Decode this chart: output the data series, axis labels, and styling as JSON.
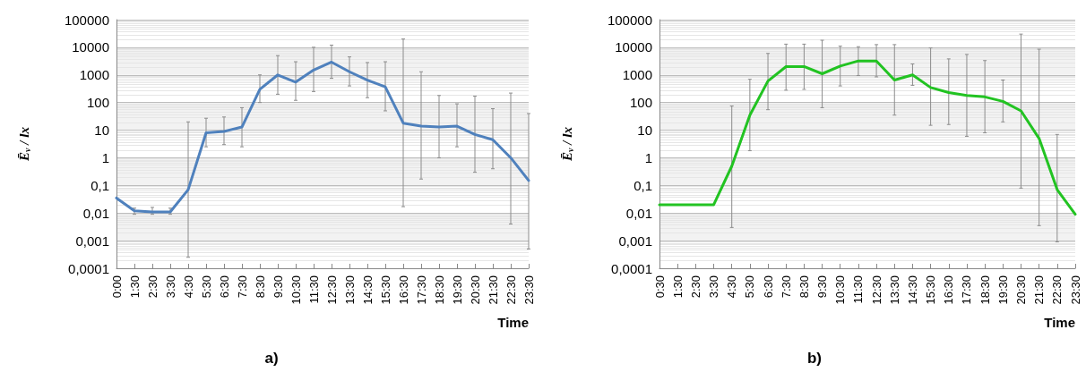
{
  "chart_data": [
    {
      "type": "line",
      "title": "a)",
      "xlabel": "Time",
      "ylabel": "Ē$_{v}$ / lx",
      "categories": [
        "0:00",
        "1:30",
        "2:30",
        "3:30",
        "4:30",
        "5:30",
        "6:30",
        "7:30",
        "8:30",
        "9:30",
        "10:30",
        "11:30",
        "12:30",
        "13:30",
        "14:30",
        "15:30",
        "16:30",
        "17:30",
        "18:30",
        "19:30",
        "20:30",
        "21:30",
        "22:30",
        "23:30"
      ],
      "series": [
        {
          "color": "#4f81bd",
          "values": [
            0.035,
            0.012,
            0.011,
            0.011,
            0.07,
            8,
            9,
            13,
            300,
            1000,
            550,
            1500,
            2900,
            1300,
            650,
            370,
            18,
            14,
            13,
            14,
            7,
            4.5,
            1,
            0.15
          ],
          "errors": [
            null,
            [
              0.009,
              0.015
            ],
            [
              0.009,
              0.016
            ],
            [
              0.009,
              0.015
            ],
            [
              0.00025,
              20
            ],
            [
              2.5,
              27
            ],
            [
              3,
              30
            ],
            [
              2.5,
              65
            ],
            [
              100,
              1000
            ],
            [
              200,
              5000
            ],
            [
              120,
              3000
            ],
            [
              250,
              10000
            ],
            [
              750,
              12000
            ],
            [
              400,
              4500
            ],
            [
              150,
              2800
            ],
            [
              50,
              3000
            ],
            [
              0.017,
              20000
            ],
            [
              0.17,
              1300
            ],
            [
              1,
              180
            ],
            [
              2.5,
              90
            ],
            [
              0.3,
              170
            ],
            [
              0.4,
              60
            ],
            [
              0.004,
              220
            ],
            [
              0.0005,
              40
            ]
          ]
        }
      ],
      "log": "y",
      "ylim": [
        0.0001,
        100000
      ],
      "yticks": [
        {
          "value": 0.0001,
          "label": "0,0001"
        },
        {
          "value": 0.001,
          "label": "0,001"
        },
        {
          "value": 0.01,
          "label": "0,01"
        },
        {
          "value": 0.1,
          "label": "0,1"
        },
        1,
        10,
        100,
        1000,
        10000,
        100000
      ],
      "grid": "y",
      "marker": "none",
      "line_style": "solid"
    },
    {
      "type": "line",
      "title": "b)",
      "xlabel": "Time",
      "ylabel": "Ē$_{v}$ / lx",
      "categories": [
        "0:30",
        "1:30",
        "2:30",
        "3:30",
        "4:30",
        "5:30",
        "6:30",
        "7:30",
        "8:30",
        "9:30",
        "10:30",
        "11:30",
        "12:30",
        "13:30",
        "14:30",
        "15:30",
        "16:30",
        "17:30",
        "18:30",
        "19:30",
        "20:30",
        "21:30",
        "22:30",
        "23:30"
      ],
      "series": [
        {
          "color": "#22c322",
          "values": [
            0.02,
            0.02,
            0.02,
            0.02,
            0.5,
            35,
            600,
            2000,
            2000,
            1100,
            2100,
            3200,
            3200,
            650,
            1000,
            350,
            230,
            180,
            160,
            110,
            50,
            5,
            0.07,
            0.009
          ],
          "errors": [
            null,
            null,
            null,
            null,
            [
              0.003,
              75
            ],
            [
              1.8,
              700
            ],
            [
              55,
              6000
            ],
            [
              280,
              13000
            ],
            [
              300,
              13000
            ],
            [
              65,
              18000
            ],
            [
              400,
              11000
            ],
            [
              950,
              10500
            ],
            [
              850,
              12500
            ],
            [
              35,
              12500
            ],
            [
              420,
              2500
            ],
            [
              15,
              9500
            ],
            [
              16,
              3800
            ],
            [
              6,
              5500
            ],
            [
              8,
              3300
            ],
            [
              20,
              650
            ],
            [
              0.08,
              30000
            ],
            [
              0.0035,
              8500
            ],
            [
              0.0009,
              7
            ],
            null
          ]
        }
      ],
      "log": "y",
      "ylim": [
        0.0001,
        100000
      ],
      "yticks": [
        {
          "value": 0.0001,
          "label": "0,0001"
        },
        {
          "value": 0.001,
          "label": "0,001"
        },
        {
          "value": 0.01,
          "label": "0,01"
        },
        {
          "value": 0.1,
          "label": "0,1"
        },
        1,
        10,
        100,
        1000,
        10000,
        100000
      ],
      "grid": "y",
      "marker": "none",
      "line_style": "solid"
    }
  ]
}
